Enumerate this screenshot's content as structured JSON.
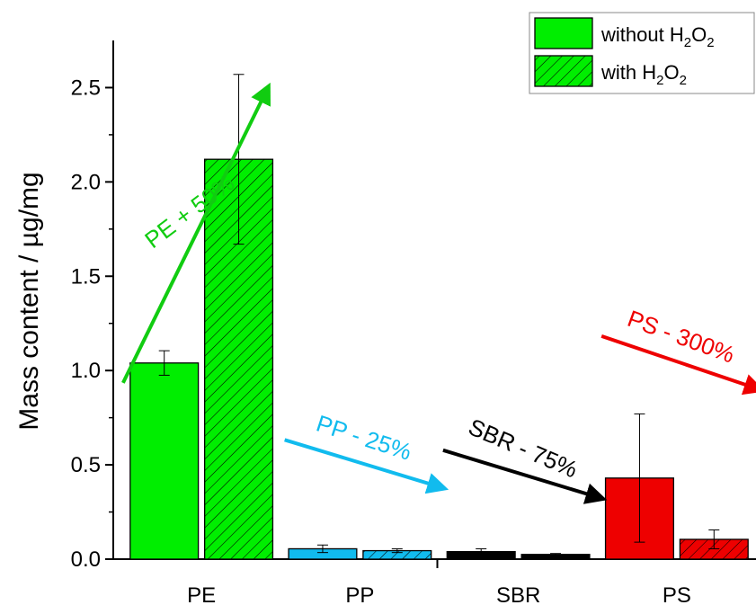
{
  "chart_data": {
    "type": "bar",
    "categories": [
      "PE",
      "PP",
      "SBR",
      "PS"
    ],
    "ylabel": "Mass content / µg/mg",
    "ylim": [
      0,
      2.75
    ],
    "yticks": [
      "0.0",
      "0.5",
      "1.0",
      "1.5",
      "2.0",
      "2.5"
    ],
    "ytick_values": [
      0,
      0.5,
      1.0,
      1.5,
      2.0,
      2.5
    ],
    "legend": {
      "placement": "top-right",
      "entries": [
        {
          "text": "without H",
          "sub1": "2",
          "mid": "O",
          "sub2": "2",
          "pattern": "solid"
        },
        {
          "text": "with H",
          "sub1": "2",
          "mid": "O",
          "sub2": "2",
          "pattern": "hatched"
        }
      ]
    },
    "series": [
      {
        "pattern": "solid",
        "values": [
          1.04,
          0.055,
          0.04,
          0.43
        ],
        "errors": [
          0.065,
          0.02,
          0.015,
          0.34
        ]
      },
      {
        "pattern": "hatched",
        "values": [
          2.12,
          0.045,
          0.025,
          0.105
        ],
        "errors": [
          0.45,
          0.01,
          0.005,
          0.05
        ]
      }
    ],
    "colors": [
      "#00ee00",
      "#11bbee",
      "#000000",
      "#ee0000"
    ],
    "legend_colors": [
      "#00ee00",
      "#00ee00"
    ],
    "annotations": [
      {
        "text": "PE + 50%",
        "color": "#11cc11"
      },
      {
        "text": "PP - 25%",
        "color": "#11bbee"
      },
      {
        "text": "SBR - 75%",
        "color": "#000000"
      },
      {
        "text": "PS - 300%",
        "color": "#ee0000"
      }
    ]
  }
}
